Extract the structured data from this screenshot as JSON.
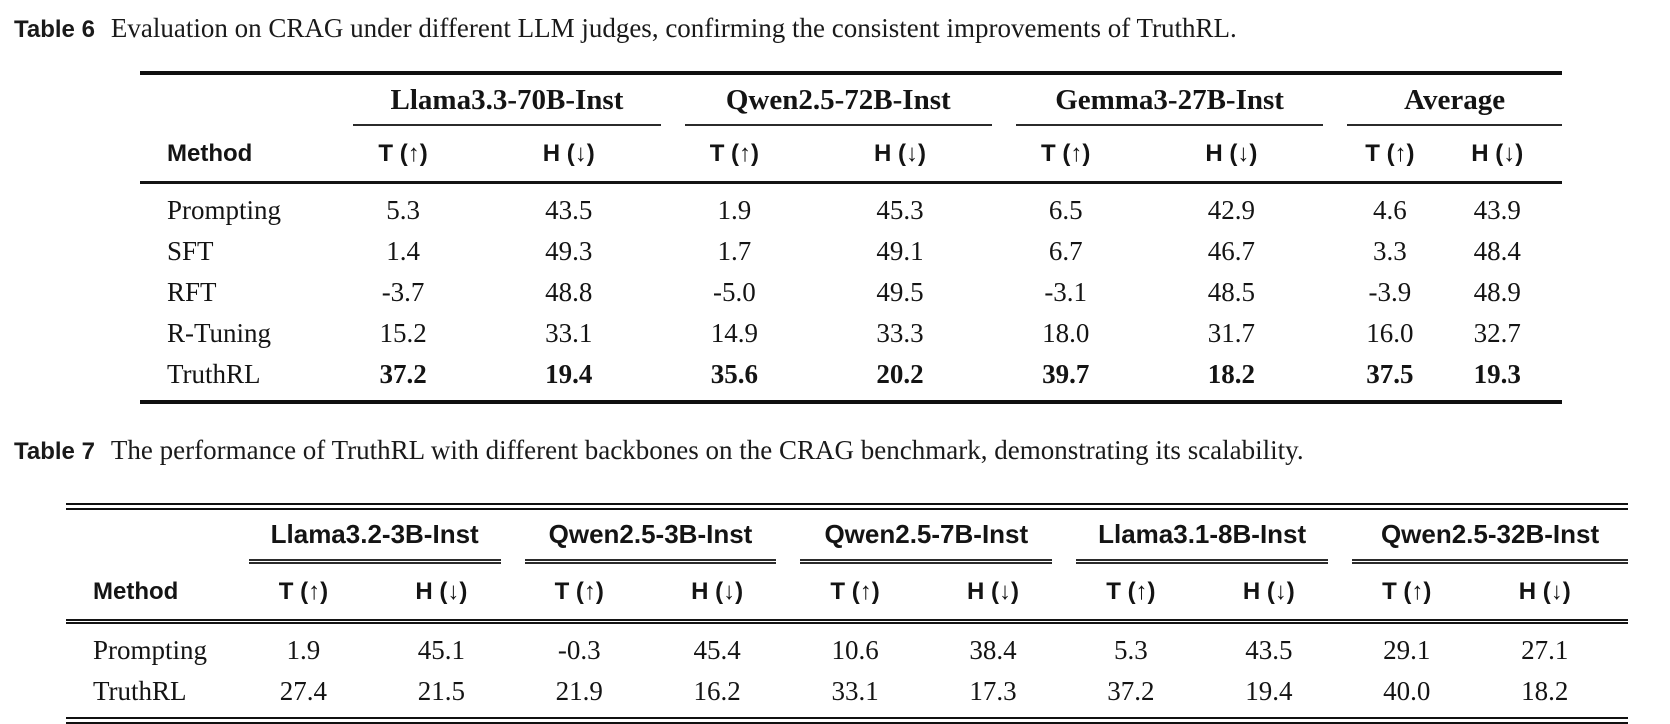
{
  "page": {
    "background": "#ffffff",
    "text_color": "#141414"
  },
  "table6": {
    "caption_label": "Table 6",
    "caption_text": "Evaluation on CRAG under different LLM judges, confirming the consistent improvements of TruthRL.",
    "method_header": "Method",
    "sub_t": "T (↑)",
    "sub_h": "H (↓)",
    "groups": [
      "Llama3.3-70B-Inst",
      "Qwen2.5-72B-Inst",
      "Gemma3-27B-Inst",
      "Average"
    ],
    "rows": [
      {
        "method": "Prompting",
        "values": [
          "5.3",
          "43.5",
          "1.9",
          "45.3",
          "6.5",
          "42.9",
          "4.6",
          "43.9"
        ]
      },
      {
        "method": "SFT",
        "values": [
          "1.4",
          "49.3",
          "1.7",
          "49.1",
          "6.7",
          "46.7",
          "3.3",
          "48.4"
        ]
      },
      {
        "method": "RFT",
        "values": [
          "-3.7",
          "48.8",
          "-5.0",
          "49.5",
          "-3.1",
          "48.5",
          "-3.9",
          "48.9"
        ]
      },
      {
        "method": "R-Tuning",
        "values": [
          "15.2",
          "33.1",
          "14.9",
          "33.3",
          "18.0",
          "31.7",
          "16.0",
          "32.7"
        ]
      },
      {
        "method": "TruthRL",
        "values": [
          "37.2",
          "19.4",
          "35.6",
          "20.2",
          "39.7",
          "18.2",
          "37.5",
          "19.3"
        ]
      }
    ]
  },
  "table7": {
    "caption_label": "Table 7",
    "caption_text": "The performance of TruthRL with different backbones on the CRAG benchmark, demonstrating its scalability.",
    "method_header": "Method",
    "sub_t": "T (↑)",
    "sub_h": "H (↓)",
    "groups": [
      "Llama3.2-3B-Inst",
      "Qwen2.5-3B-Inst",
      "Qwen2.5-7B-Inst",
      "Llama3.1-8B-Inst",
      "Qwen2.5-32B-Inst"
    ],
    "rows": [
      {
        "method": "Prompting",
        "values": [
          "1.9",
          "45.1",
          "-0.3",
          "45.4",
          "10.6",
          "38.4",
          "5.3",
          "43.5",
          "29.1",
          "27.1"
        ]
      },
      {
        "method": "TruthRL",
        "values": [
          "27.4",
          "21.5",
          "21.9",
          "16.2",
          "33.1",
          "17.3",
          "37.2",
          "19.4",
          "40.0",
          "18.2"
        ]
      }
    ]
  }
}
